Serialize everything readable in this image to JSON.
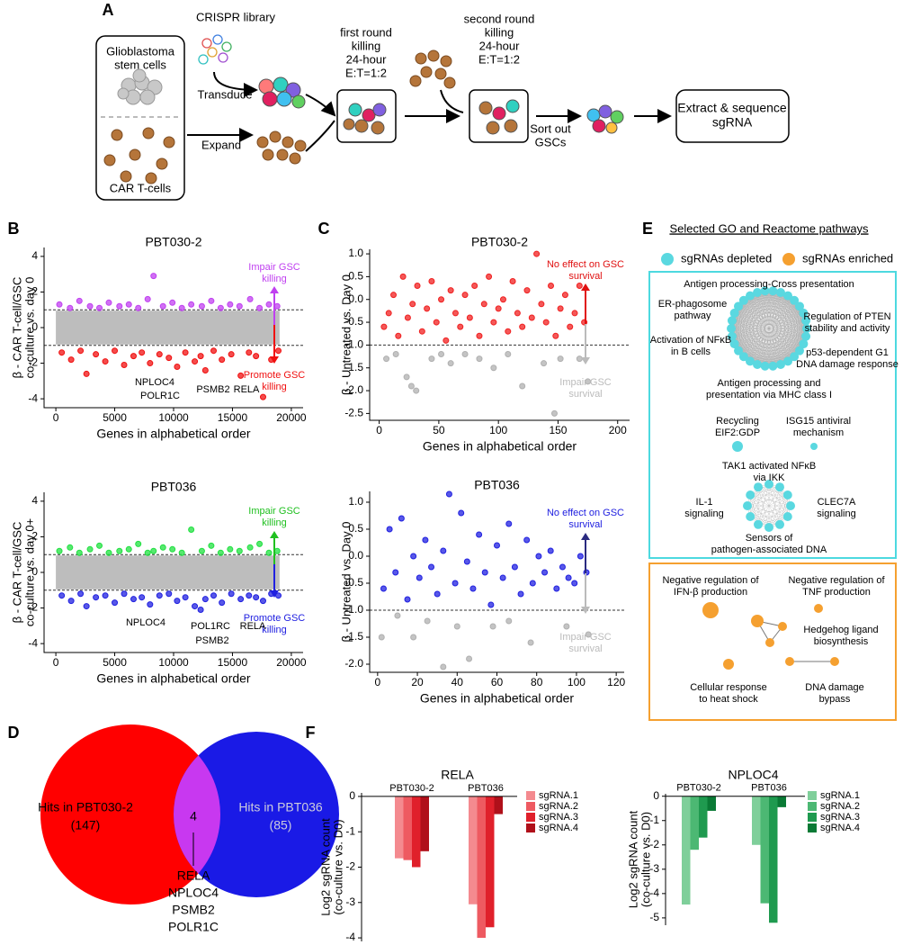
{
  "panel_labels": [
    "A",
    "B",
    "C",
    "D",
    "E",
    "F"
  ],
  "diagram": {
    "crispr": "CRISPR library",
    "gsc": [
      "Glioblastoma",
      "stem cells"
    ],
    "car": "CAR T-cells",
    "transduce": "Transduce",
    "expand": "Expand",
    "round1": [
      "first round",
      "killing",
      "24-hour",
      "E:T=1:2"
    ],
    "round2": [
      "second round",
      "killing",
      "24-hour",
      "E:T=1:2"
    ],
    "sort": [
      "Sort out",
      "GSCs"
    ],
    "extract": [
      "Extract & sequence",
      "sgRNA"
    ]
  },
  "chart_data": [
    {
      "type": "scatter",
      "title": "PBT030-2",
      "xlabel": "Genes in alphabetical order",
      "ylabel": [
        "β - CAR T-cell/GSC",
        "co-culture vs. day 0"
      ],
      "xlim": [
        -1000,
        21000
      ],
      "ylim": [
        -4.5,
        4.5
      ],
      "xticks": [
        0,
        5000,
        10000,
        15000,
        20000
      ],
      "yticks": [
        -4,
        -2,
        0,
        2,
        4
      ],
      "hlines": [
        1,
        -1
      ],
      "series": [
        {
          "color": "#c040f0",
          "x": [
            300,
            1200,
            2000,
            2900,
            3700,
            4500,
            5400,
            6200,
            7000,
            7800,
            8300,
            9100,
            9900,
            10700,
            11500,
            12400,
            13200,
            14000,
            14800,
            15600,
            16500,
            17300,
            18100,
            18800
          ],
          "values": [
            1.3,
            1.1,
            1.5,
            1.2,
            1.1,
            1.4,
            1.2,
            1.3,
            1.1,
            1.6,
            2.9,
            1.2,
            1.4,
            1.1,
            1.3,
            1.2,
            1.5,
            1.1,
            1.3,
            1.2,
            1.6,
            1.1,
            1.3,
            1.2
          ]
        },
        {
          "color": "#f01010",
          "x": [
            500,
            1300,
            2100,
            2600,
            3400,
            4200,
            5000,
            5800,
            6600,
            7300,
            8000,
            8800,
            9600,
            10300,
            11000,
            11800,
            12300,
            12700,
            13400,
            14100,
            14900,
            15700,
            16400,
            17000,
            17600,
            18300,
            18900
          ],
          "values": [
            -1.4,
            -1.8,
            -1.3,
            -2.6,
            -1.5,
            -1.9,
            -1.3,
            -2.1,
            -1.6,
            -1.4,
            -2.0,
            -1.5,
            -1.7,
            -2.2,
            -1.4,
            -1.9,
            -1.6,
            -2.4,
            -1.3,
            -1.8,
            -1.5,
            -2.7,
            -1.4,
            -1.6,
            -3.9,
            -1.8,
            -1.3
          ]
        }
      ],
      "annotations": [
        {
          "lines": [
            "Impair GSC",
            "killing"
          ],
          "color": "#c040f0"
        },
        {
          "lines": [
            "Promote GSC",
            "killing"
          ],
          "color": "#f01010"
        },
        {
          "lines": [
            "NPLOC4"
          ],
          "color": "#000000"
        },
        {
          "lines": [
            "POLR1C"
          ],
          "color": "#000000"
        },
        {
          "lines": [
            "PSMB2"
          ],
          "color": "#000000"
        },
        {
          "lines": [
            "RELA"
          ],
          "color": "#000000"
        }
      ]
    },
    {
      "type": "scatter",
      "title": "PBT036",
      "xlabel": "Genes in alphabetical order",
      "ylabel": [
        "β - CAR T-cell/GSC",
        "co-culture vs. day 0+"
      ],
      "xlim": [
        -1000,
        21000
      ],
      "ylim": [
        -4.5,
        4.5
      ],
      "xticks": [
        0,
        5000,
        10000,
        15000,
        20000
      ],
      "yticks": [
        -4,
        -2,
        0,
        2,
        4
      ],
      "hlines": [
        1,
        -1
      ],
      "series": [
        {
          "color": "#20e040",
          "x": [
            300,
            1200,
            2000,
            2900,
            3700,
            4500,
            5400,
            6200,
            7000,
            7800,
            8300,
            9100,
            9900,
            10700,
            11500,
            12400,
            13200,
            14000,
            14800,
            15600,
            16500,
            17300,
            18100,
            18800
          ],
          "values": [
            1.2,
            1.4,
            1.1,
            1.3,
            1.5,
            1.1,
            1.2,
            1.3,
            1.6,
            1.1,
            1.2,
            1.4,
            1.3,
            1.1,
            2.4,
            1.2,
            1.5,
            1.1,
            1.3,
            1.2,
            1.4,
            1.6,
            1.1,
            1.2
          ]
        },
        {
          "color": "#2020e0",
          "x": [
            500,
            1300,
            2100,
            2600,
            3400,
            4200,
            5000,
            5800,
            6600,
            7300,
            8000,
            8800,
            9600,
            10300,
            11000,
            11800,
            12300,
            12700,
            13400,
            14100,
            14900,
            15700,
            16400,
            17000,
            17600,
            18300,
            18900
          ],
          "values": [
            -1.3,
            -1.6,
            -1.2,
            -1.9,
            -1.4,
            -1.3,
            -1.7,
            -1.2,
            -1.5,
            -1.4,
            -1.8,
            -1.3,
            -1.2,
            -1.6,
            -1.4,
            -1.9,
            -2.1,
            -1.5,
            -1.3,
            -1.7,
            -1.2,
            -1.5,
            -1.3,
            -1.4,
            -1.6,
            -1.2,
            -1.3
          ]
        }
      ],
      "annotations": [
        {
          "lines": [
            "Impair GSC",
            "killing"
          ],
          "color": "#20c020"
        },
        {
          "lines": [
            "Promote GSC",
            "killing"
          ],
          "color": "#2020e0"
        },
        {
          "lines": [
            "NPLOC4"
          ],
          "color": "#000000"
        },
        {
          "lines": [
            "POL1RC"
          ],
          "color": "#000000"
        },
        {
          "lines": [
            "PSMB2"
          ],
          "color": "#000000"
        },
        {
          "lines": [
            "RELA"
          ],
          "color": "#000000"
        }
      ]
    },
    {
      "type": "scatter",
      "title": "PBT030-2",
      "xlabel": "Genes in alphabetical order",
      "ylabel": [
        "β - Untreated vs. Day 0"
      ],
      "xlim": [
        -8,
        210
      ],
      "ylim": [
        -2.65,
        1.1
      ],
      "xticks": [
        0,
        50,
        100,
        150,
        200
      ],
      "yticks": [
        -2.5,
        {
          "value": -2,
          "label": "-2.0"
        },
        -1.5,
        {
          "value": -1,
          "label": "-1.0"
        },
        -0.5,
        {
          "value": 0,
          "label": "0.0"
        },
        0.5,
        {
          "value": 1,
          "label": "1.0"
        }
      ],
      "hlines": [
        -1
      ],
      "series": [
        {
          "color": "#f02020",
          "x": [
            4,
            8,
            12,
            16,
            20,
            24,
            28,
            32,
            36,
            40,
            44,
            48,
            52,
            56,
            60,
            64,
            68,
            72,
            76,
            80,
            84,
            88,
            92,
            96,
            100,
            104,
            108,
            112,
            116,
            120,
            124,
            128,
            132,
            136,
            140,
            144,
            148,
            152,
            156,
            160,
            164,
            168,
            172
          ],
          "values": [
            -0.6,
            -0.3,
            0.1,
            -0.8,
            0.5,
            -0.4,
            -0.1,
            0.3,
            -0.7,
            -0.2,
            0.4,
            -0.5,
            0.0,
            -0.9,
            0.2,
            -0.3,
            -0.6,
            0.1,
            -0.4,
            0.3,
            -0.8,
            -0.1,
            0.5,
            -0.5,
            -0.2,
            0.0,
            -0.7,
            0.4,
            -0.3,
            -0.6,
            0.2,
            -0.4,
            1.0,
            -0.1,
            -0.5,
            0.3,
            -0.8,
            -0.2,
            0.1,
            -0.6,
            -0.3,
            0.3,
            -0.5
          ]
        },
        {
          "color": "#b0b0b0",
          "x": [
            6,
            14,
            23,
            27,
            31,
            44,
            52,
            60,
            72,
            84,
            96,
            108,
            120,
            138,
            147,
            152,
            168,
            175
          ],
          "values": [
            -1.3,
            -1.2,
            -1.7,
            -1.9,
            -2.0,
            -1.3,
            -1.2,
            -1.4,
            -1.2,
            -1.3,
            -1.5,
            -1.2,
            -1.9,
            -1.4,
            -2.5,
            -1.3,
            -1.3,
            -1.8
          ]
        }
      ],
      "annotations": [
        {
          "lines": [
            "No effect on GSC",
            "survival"
          ],
          "color": "#e01010"
        },
        {
          "lines": [
            "Impair GSC",
            "survival"
          ],
          "color": "#bbbbbb"
        }
      ]
    },
    {
      "type": "scatter",
      "title": "PBT036",
      "xlabel": "Genes in alphabetical order",
      "ylabel": [
        "β - Untreated vs. Day 0"
      ],
      "xlim": [
        -4,
        124
      ],
      "ylim": [
        -2.15,
        1.2
      ],
      "xticks": [
        0,
        20,
        40,
        60,
        80,
        100,
        120
      ],
      "yticks": [
        {
          "value": -2,
          "label": "-2.0"
        },
        -1.5,
        {
          "value": -1,
          "label": "-1.0"
        },
        -0.5,
        {
          "value": 0,
          "label": "0.0"
        },
        0.5,
        {
          "value": 1,
          "label": "1.0"
        }
      ],
      "hlines": [
        -1
      ],
      "series": [
        {
          "color": "#2020e0",
          "x": [
            3,
            6,
            9,
            12,
            15,
            18,
            21,
            24,
            27,
            30,
            33,
            36,
            39,
            42,
            45,
            48,
            51,
            54,
            57,
            60,
            63,
            66,
            69,
            72,
            75,
            78,
            81,
            84,
            87,
            90,
            93,
            96,
            99,
            102,
            105
          ],
          "values": [
            -0.6,
            0.5,
            -0.3,
            0.7,
            -0.8,
            0.0,
            -0.4,
            0.3,
            -0.2,
            -0.7,
            0.1,
            1.15,
            -0.5,
            0.8,
            -0.1,
            -0.6,
            0.4,
            -0.3,
            -0.9,
            0.2,
            -0.4,
            0.6,
            -0.2,
            -0.7,
            0.3,
            -0.5,
            0.0,
            -0.3,
            0.1,
            -0.6,
            -0.2,
            -0.4,
            -0.5,
            0.0,
            -0.3
          ]
        },
        {
          "color": "#b0b0b0",
          "x": [
            2,
            10,
            18,
            25,
            33,
            40,
            46,
            58,
            66,
            77,
            95,
            106
          ],
          "values": [
            -1.5,
            -1.1,
            -1.5,
            -1.2,
            -2.05,
            -1.3,
            -1.9,
            -1.3,
            -1.2,
            -1.6,
            -1.3,
            -1.45
          ]
        }
      ],
      "annotations": [
        {
          "lines": [
            "No effect on GSC",
            "survival"
          ],
          "color": "#2020e0"
        },
        {
          "lines": [
            "Impair GSC",
            "survival"
          ],
          "color": "#bbbbbb"
        }
      ]
    },
    {
      "type": "bar",
      "title": "RELA",
      "ylabel": [
        "Log2 sgRNA count",
        "(co-culture vs. D0)"
      ],
      "categories": [
        "PBT030-2",
        "PBT036"
      ],
      "ylim": [
        -4.1,
        0.1
      ],
      "yticks": [
        -4,
        -3,
        -2,
        -1,
        0
      ],
      "series": [
        {
          "name": "sgRNA.1",
          "color": "#f48a8f",
          "values": [
            -1.75,
            -3.05
          ]
        },
        {
          "name": "sgRNA.2",
          "color": "#ee5a61",
          "values": [
            -1.8,
            -4.0
          ]
        },
        {
          "name": "sgRNA.3",
          "color": "#e0202b",
          "values": [
            -2.0,
            -3.7
          ]
        },
        {
          "name": "sgRNA.4",
          "color": "#b0101a",
          "values": [
            -1.55,
            -0.5
          ]
        }
      ]
    },
    {
      "type": "bar",
      "title": "NPLOC4",
      "ylabel": [
        "Log2 sgRNA count",
        "(co-culture vs. D0)"
      ],
      "categories": [
        "PBT030-2",
        "PBT036"
      ],
      "ylim": [
        -5.3,
        0.1
      ],
      "yticks": [
        -5,
        -4,
        -3,
        -2,
        -1,
        0
      ],
      "series": [
        {
          "name": "sgRNA.1",
          "color": "#7fcf9a",
          "values": [
            -4.45,
            -2.0
          ]
        },
        {
          "name": "sgRNA.2",
          "color": "#4cb873",
          "values": [
            -2.2,
            -4.4
          ]
        },
        {
          "name": "sgRNA.3",
          "color": "#1f9a4f",
          "values": [
            -1.7,
            -5.2
          ]
        },
        {
          "name": "sgRNA.4",
          "color": "#0a7a35",
          "values": [
            -0.6,
            -0.45
          ]
        }
      ]
    }
  ],
  "pathways": {
    "title": "Selected GO and Reactome pathways",
    "legend": [
      "sgRNAs depleted",
      "sgRNAs enriched"
    ],
    "depleted": [
      [
        "Antigen processing-Cross presentation"
      ],
      [
        "ER-phagosome",
        "pathway"
      ],
      [
        "Regulation of PTEN",
        "stability and activity"
      ],
      [
        "Activation of NFκB",
        "in B cells"
      ],
      [
        "p53-dependent G1",
        "DNA damage response"
      ],
      [
        "Antigen processing and",
        "presentation via MHC class I"
      ],
      [
        "Recycling",
        "EIF2:GDP"
      ],
      [
        "ISG15 antiviral",
        "mechanism"
      ],
      [
        "TAK1 activated NFκB",
        "via IKK"
      ],
      [
        "IL-1",
        "signaling"
      ],
      [
        "CLEC7A",
        "signaling"
      ],
      [
        "Sensors of",
        "pathogen-associated DNA"
      ]
    ],
    "enriched": [
      [
        "Negative regulation of",
        "IFN-β production"
      ],
      [
        "Negative regulation of",
        "TNF production"
      ],
      [
        "Hedgehog ligand",
        "biosynthesis"
      ],
      [
        "Cellular response",
        "to heat shock"
      ],
      [
        "DNA damage",
        "bypass"
      ]
    ]
  },
  "venn": {
    "left": [
      "Hits in PBT030-2",
      "(147)"
    ],
    "right": [
      "Hits in PBT036",
      "(85)"
    ],
    "overlap": "4",
    "genes": [
      "RELA",
      "NPLOC4",
      "PSMB2",
      "POLR1C"
    ]
  }
}
